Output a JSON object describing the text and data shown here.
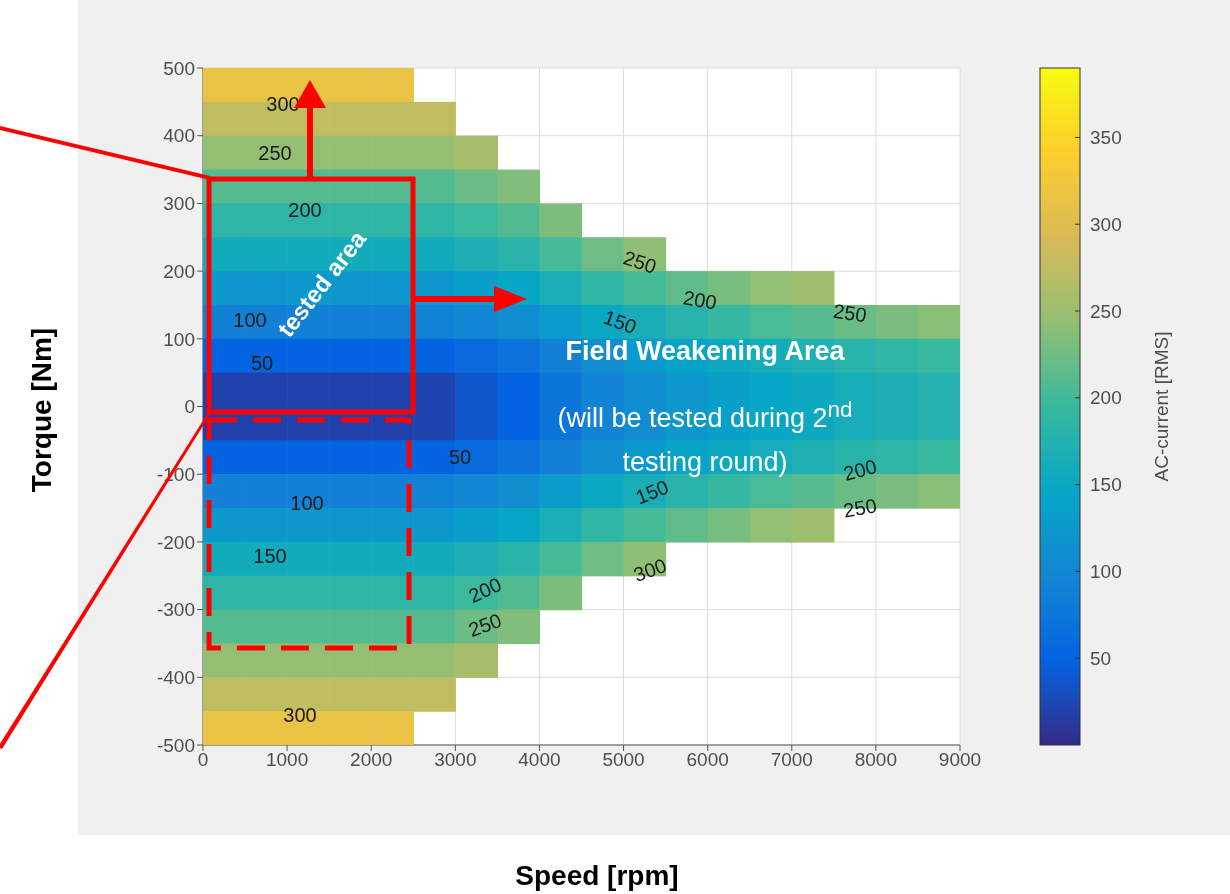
{
  "chart_data": {
    "type": "heatmap",
    "xlabel": "Speed [rpm]",
    "ylabel": "Torque [Nm]",
    "clabel": "AC-current [RMS]",
    "xlim": [
      0,
      9000
    ],
    "xticks": [
      0,
      1000,
      2000,
      3000,
      4000,
      5000,
      6000,
      7000,
      8000,
      9000
    ],
    "ylim": [
      -500,
      500
    ],
    "yticks": [
      -500,
      -400,
      -300,
      -200,
      -100,
      0,
      100,
      200,
      300,
      400,
      500
    ],
    "clim": [
      0,
      390
    ],
    "cticks": [
      50,
      100,
      150,
      200,
      250,
      300,
      350
    ],
    "grid": true,
    "cells": [
      [
        315,
        315,
        315,
        315,
        315,
        null,
        null,
        null,
        null,
        null,
        null,
        null,
        null,
        null,
        null,
        null,
        null,
        null
      ],
      [
        275,
        275,
        275,
        275,
        275,
        275,
        null,
        null,
        null,
        null,
        null,
        null,
        null,
        null,
        null,
        null,
        null,
        null
      ],
      [
        245,
        245,
        245,
        245,
        245,
        245,
        259,
        null,
        null,
        null,
        null,
        null,
        null,
        null,
        null,
        null,
        null,
        null
      ],
      [
        210,
        210,
        210,
        210,
        210,
        210,
        223,
        235,
        null,
        null,
        null,
        null,
        null,
        null,
        null,
        null,
        null,
        null
      ],
      [
        185,
        185,
        185,
        185,
        185,
        185,
        196,
        208,
        233,
        null,
        null,
        null,
        null,
        null,
        null,
        null,
        null,
        null
      ],
      [
        158,
        158,
        158,
        158,
        158,
        158,
        169,
        180,
        202,
        224,
        242,
        null,
        null,
        null,
        null,
        null,
        null,
        null
      ],
      [
        125,
        125,
        125,
        125,
        125,
        125,
        134,
        145,
        166,
        186,
        202,
        217,
        229,
        243,
        253,
        null,
        null,
        null
      ],
      [
        92,
        92,
        92,
        92,
        92,
        93,
        101,
        111,
        130,
        150,
        165,
        179,
        191,
        203,
        212,
        222,
        231,
        239
      ],
      [
        50,
        50,
        50,
        50,
        50,
        51,
        60,
        71,
        92,
        111,
        126,
        140,
        152,
        162,
        171,
        179,
        187,
        194
      ],
      [
        20,
        20,
        20,
        20,
        20,
        22,
        37,
        50,
        74,
        94,
        109,
        123,
        135,
        145,
        153,
        162,
        169,
        176
      ],
      [
        20,
        20,
        20,
        20,
        20,
        22,
        37,
        50,
        74,
        94,
        109,
        123,
        135,
        145,
        153,
        162,
        169,
        176
      ],
      [
        50,
        50,
        50,
        50,
        50,
        51,
        60,
        71,
        92,
        111,
        126,
        140,
        152,
        162,
        171,
        179,
        187,
        194
      ],
      [
        92,
        92,
        92,
        92,
        92,
        93,
        101,
        111,
        130,
        150,
        165,
        179,
        191,
        203,
        212,
        222,
        231,
        239
      ],
      [
        125,
        125,
        125,
        125,
        125,
        125,
        134,
        145,
        166,
        186,
        202,
        217,
        229,
        243,
        253,
        null,
        null,
        null
      ],
      [
        158,
        158,
        158,
        158,
        158,
        158,
        169,
        180,
        202,
        224,
        242,
        null,
        null,
        null,
        null,
        null,
        null,
        null
      ],
      [
        185,
        185,
        185,
        185,
        185,
        185,
        196,
        208,
        233,
        null,
        null,
        null,
        null,
        null,
        null,
        null,
        null,
        null
      ],
      [
        210,
        210,
        210,
        210,
        210,
        210,
        223,
        235,
        null,
        null,
        null,
        null,
        null,
        null,
        null,
        null,
        null,
        null
      ],
      [
        245,
        245,
        245,
        245,
        245,
        245,
        259,
        null,
        null,
        null,
        null,
        null,
        null,
        null,
        null,
        null,
        null,
        null
      ],
      [
        275,
        275,
        275,
        275,
        275,
        275,
        null,
        null,
        null,
        null,
        null,
        null,
        null,
        null,
        null,
        null,
        null,
        null
      ],
      [
        315,
        315,
        315,
        315,
        315,
        null,
        null,
        null,
        null,
        null,
        null,
        null,
        null,
        null,
        null,
        null,
        null,
        null
      ]
    ],
    "annotations": [
      "tested area",
      "Field Weakening Area",
      "(will be tested during 2$^{nd}$ testing round)",
      "300",
      "250",
      "200",
      "100",
      "50",
      "50",
      "100",
      "150",
      "300",
      "250",
      "200",
      "150",
      "250",
      "150",
      "200",
      "250",
      "200",
      "300",
      "250"
    ]
  }
}
